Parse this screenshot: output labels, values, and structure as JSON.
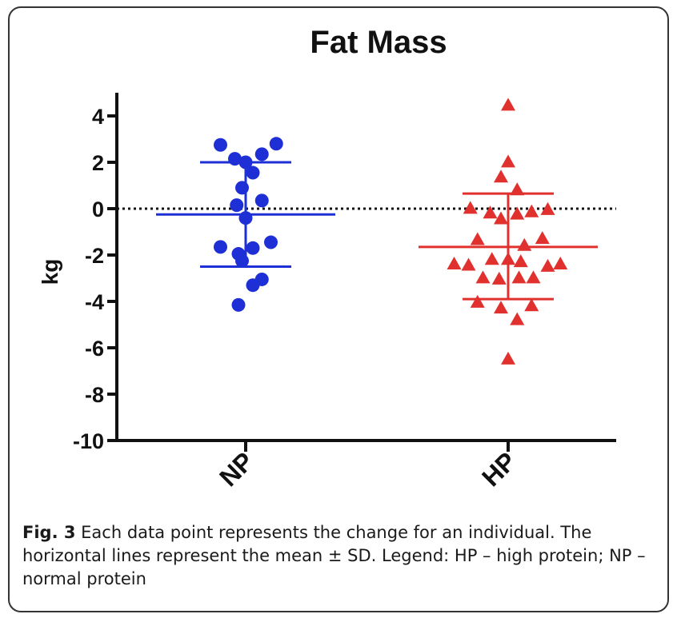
{
  "chart_data": {
    "type": "scatter",
    "title": "Fat Mass",
    "xlabel": "",
    "ylabel": "kg",
    "categories": [
      "NP",
      "HP"
    ],
    "ylim": [
      -10,
      5
    ],
    "yticks": [
      4,
      2,
      0,
      -2,
      -4,
      -6,
      -8,
      -10
    ],
    "reference_line": 0,
    "grid": false,
    "series": [
      {
        "category": "NP",
        "marker": "circle",
        "color": "#1f2fd6",
        "mean": -0.25,
        "sd_upper": 2.0,
        "sd_lower": -2.5,
        "points": [
          {
            "x": -0.7,
            "y": 2.75
          },
          {
            "x": -0.3,
            "y": 2.15
          },
          {
            "x": 0.0,
            "y": 2.0
          },
          {
            "x": 0.2,
            "y": 1.55
          },
          {
            "x": 0.45,
            "y": 2.35
          },
          {
            "x": 0.85,
            "y": 2.8
          },
          {
            "x": -0.1,
            "y": 0.9
          },
          {
            "x": -0.25,
            "y": 0.15
          },
          {
            "x": 0.45,
            "y": 0.35
          },
          {
            "x": 0.0,
            "y": -0.4
          },
          {
            "x": -0.7,
            "y": -1.65
          },
          {
            "x": -0.2,
            "y": -1.95
          },
          {
            "x": 0.2,
            "y": -1.7
          },
          {
            "x": 0.7,
            "y": -1.45
          },
          {
            "x": -0.1,
            "y": -2.25
          },
          {
            "x": 0.45,
            "y": -3.05
          },
          {
            "x": 0.2,
            "y": -3.3
          },
          {
            "x": -0.2,
            "y": -4.15
          }
        ]
      },
      {
        "category": "HP",
        "marker": "triangle",
        "color": "#e0312e",
        "mean": -1.65,
        "sd_upper": 0.65,
        "sd_lower": -3.9,
        "points": [
          {
            "x": 0.0,
            "y": 4.45
          },
          {
            "x": 0.0,
            "y": 2.0
          },
          {
            "x": -0.2,
            "y": 1.35
          },
          {
            "x": 0.25,
            "y": 0.8
          },
          {
            "x": -1.05,
            "y": 0.0
          },
          {
            "x": -0.5,
            "y": -0.2
          },
          {
            "x": -0.2,
            "y": -0.45
          },
          {
            "x": 0.25,
            "y": -0.25
          },
          {
            "x": 0.65,
            "y": -0.15
          },
          {
            "x": 1.1,
            "y": -0.05
          },
          {
            "x": -0.85,
            "y": -1.35
          },
          {
            "x": 0.45,
            "y": -1.6
          },
          {
            "x": 0.95,
            "y": -1.3
          },
          {
            "x": -1.5,
            "y": -2.4
          },
          {
            "x": -1.1,
            "y": -2.45
          },
          {
            "x": -0.45,
            "y": -2.2
          },
          {
            "x": 0.0,
            "y": -2.2
          },
          {
            "x": 0.35,
            "y": -2.3
          },
          {
            "x": 1.1,
            "y": -2.5
          },
          {
            "x": 1.45,
            "y": -2.4
          },
          {
            "x": -0.7,
            "y": -3.0
          },
          {
            "x": -0.25,
            "y": -3.05
          },
          {
            "x": 0.3,
            "y": -3.0
          },
          {
            "x": 0.7,
            "y": -3.0
          },
          {
            "x": -0.85,
            "y": -4.05
          },
          {
            "x": -0.2,
            "y": -4.3
          },
          {
            "x": 0.65,
            "y": -4.2
          },
          {
            "x": 0.25,
            "y": -4.8
          },
          {
            "x": 0.0,
            "y": -6.5
          }
        ]
      }
    ]
  },
  "caption": {
    "label": "Fig. 3",
    "text": " Each data point represents the change for an individual. The horizontal lines represent the mean ± SD. Legend: HP – high protein; NP – normal protein"
  }
}
